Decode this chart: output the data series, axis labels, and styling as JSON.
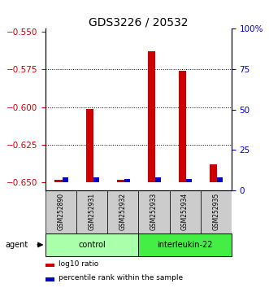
{
  "title": "GDS3226 / 20532",
  "samples": [
    "GSM252890",
    "GSM252931",
    "GSM252932",
    "GSM252933",
    "GSM252934",
    "GSM252935"
  ],
  "log10_ratio": [
    -0.648,
    -0.601,
    -0.648,
    -0.563,
    -0.576,
    -0.638
  ],
  "percentile_rank": [
    3,
    3,
    2,
    3,
    2,
    3
  ],
  "left_ylim": [
    -0.655,
    -0.548
  ],
  "left_yticks": [
    -0.65,
    -0.625,
    -0.6,
    -0.575,
    -0.55
  ],
  "right_ylim": [
    0,
    100
  ],
  "right_yticks": [
    0,
    25,
    50,
    75,
    100
  ],
  "right_ylabels": [
    "0",
    "25",
    "50",
    "75",
    "100%"
  ],
  "bar_bottom": -0.65,
  "groups": [
    {
      "label": "control",
      "start": 0,
      "end": 3,
      "color": "#aaffaa"
    },
    {
      "label": "interleukin-22",
      "start": 3,
      "end": 6,
      "color": "#44ee44"
    }
  ],
  "agent_label": "agent",
  "red_color": "#cc0000",
  "blue_color": "#0000cc",
  "legend_items": [
    {
      "color": "#cc0000",
      "label": "log10 ratio"
    },
    {
      "color": "#0000cc",
      "label": "percentile rank within the sample"
    }
  ],
  "title_fontsize": 10,
  "tick_fontsize": 7.5,
  "sample_fontsize": 5.5,
  "group_fontsize": 7,
  "legend_fontsize": 6.5
}
